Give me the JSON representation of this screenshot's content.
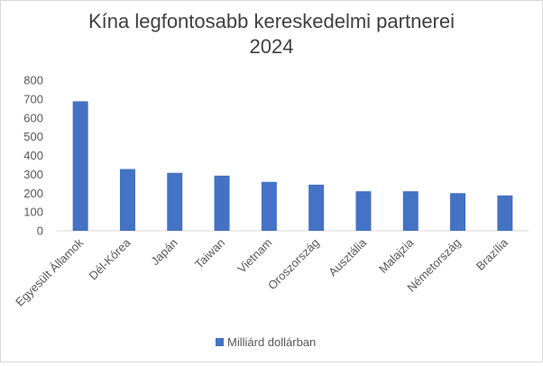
{
  "chart_data": {
    "type": "bar",
    "title_lines": [
      "Kína legfontosabb kereskedelmi partnerei",
      "2024"
    ],
    "categories": [
      "Egyesült Államok",
      "Dél-Kórea",
      "Japán",
      "Taiwan",
      "Vietnam",
      "Oroszország",
      "Ausztália",
      "Malajzia",
      "Németország",
      "Brazília"
    ],
    "series": [
      {
        "name": "Milliárd dollárban",
        "values": [
          688,
          328,
          308,
          293,
          260,
          245,
          210,
          210,
          200,
          188
        ]
      }
    ],
    "ylim": [
      0,
      800
    ],
    "yticks": [
      0,
      100,
      200,
      300,
      400,
      500,
      600,
      700,
      800
    ],
    "grid": false,
    "legend": "bottom",
    "bar_color": "#4472C4"
  }
}
